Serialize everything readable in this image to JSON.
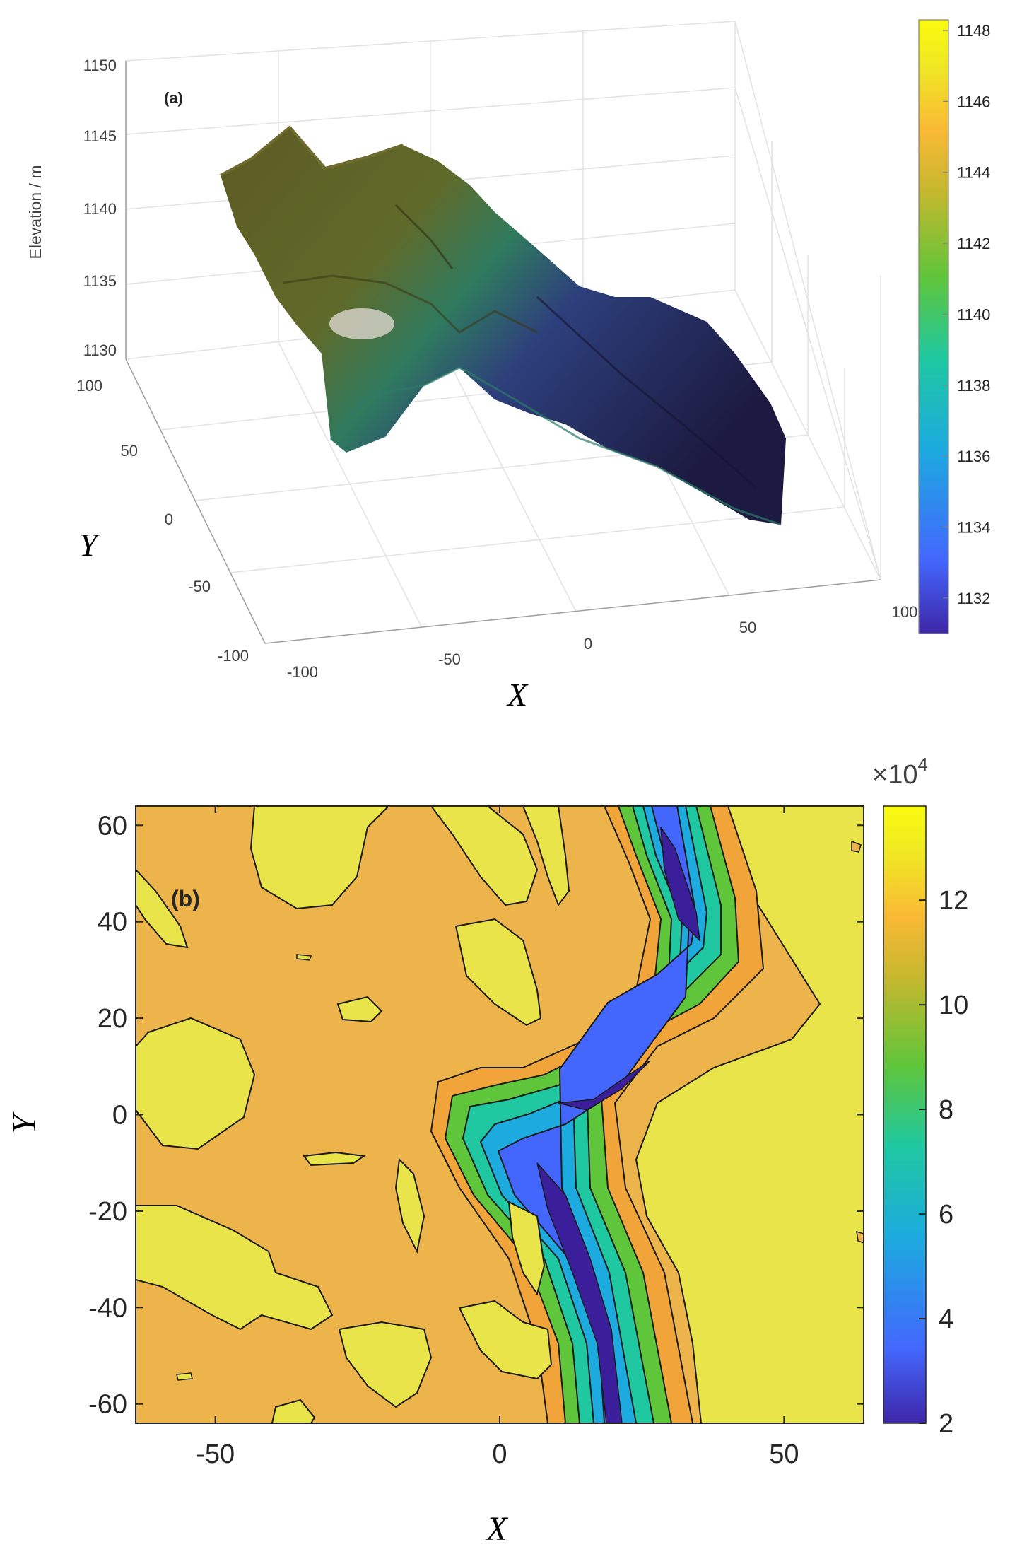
{
  "chart_data": [
    {
      "type": "surface",
      "panel_label": "(a)",
      "zlabel": "Elevation / m",
      "xlabel": "X",
      "ylabel": "Y",
      "x_ticks": [
        "-100",
        "-50",
        "0",
        "50",
        "100"
      ],
      "y_ticks": [
        "-100",
        "-50",
        "0",
        "50",
        "100"
      ],
      "z_ticks": [
        "1130",
        "1135",
        "1140",
        "1145",
        "1150"
      ],
      "xlim": [
        -100,
        100
      ],
      "ylim": [
        -100,
        100
      ],
      "zlim": [
        1130,
        1150
      ],
      "colorbar_ticks": [
        "1132",
        "1134",
        "1136",
        "1138",
        "1140",
        "1142",
        "1144",
        "1146",
        "1148"
      ],
      "colorbar_range": [
        1131,
        1148.3
      ],
      "colormap": [
        "#3e26a8",
        "#4367fd",
        "#1caadf",
        "#1fc8a0",
        "#5fc53a",
        "#c5b82e",
        "#fab935",
        "#f0e624",
        "#f9fb0e"
      ],
      "grid": true
    },
    {
      "type": "contour",
      "panel_label": "(b)",
      "xlabel": "X",
      "ylabel": "Y",
      "x_ticks": [
        "-50",
        "0",
        "50"
      ],
      "y_ticks": [
        "60",
        "40",
        "20",
        "0",
        "-20",
        "-40",
        "-60"
      ],
      "xlim": [
        -64,
        64
      ],
      "ylim": [
        -64,
        64
      ],
      "colorbar_ticks": [
        "2",
        "4",
        "6",
        "8",
        "10",
        "12"
      ],
      "colorbar_range": [
        2,
        13.8
      ],
      "colorbar_exponent": "×10",
      "colorbar_exponent_power": "4",
      "colors": {
        "high": "#e9e44a",
        "plateau": "#ecb44b",
        "valley": "#3b1f9a"
      },
      "grid": false
    }
  ]
}
